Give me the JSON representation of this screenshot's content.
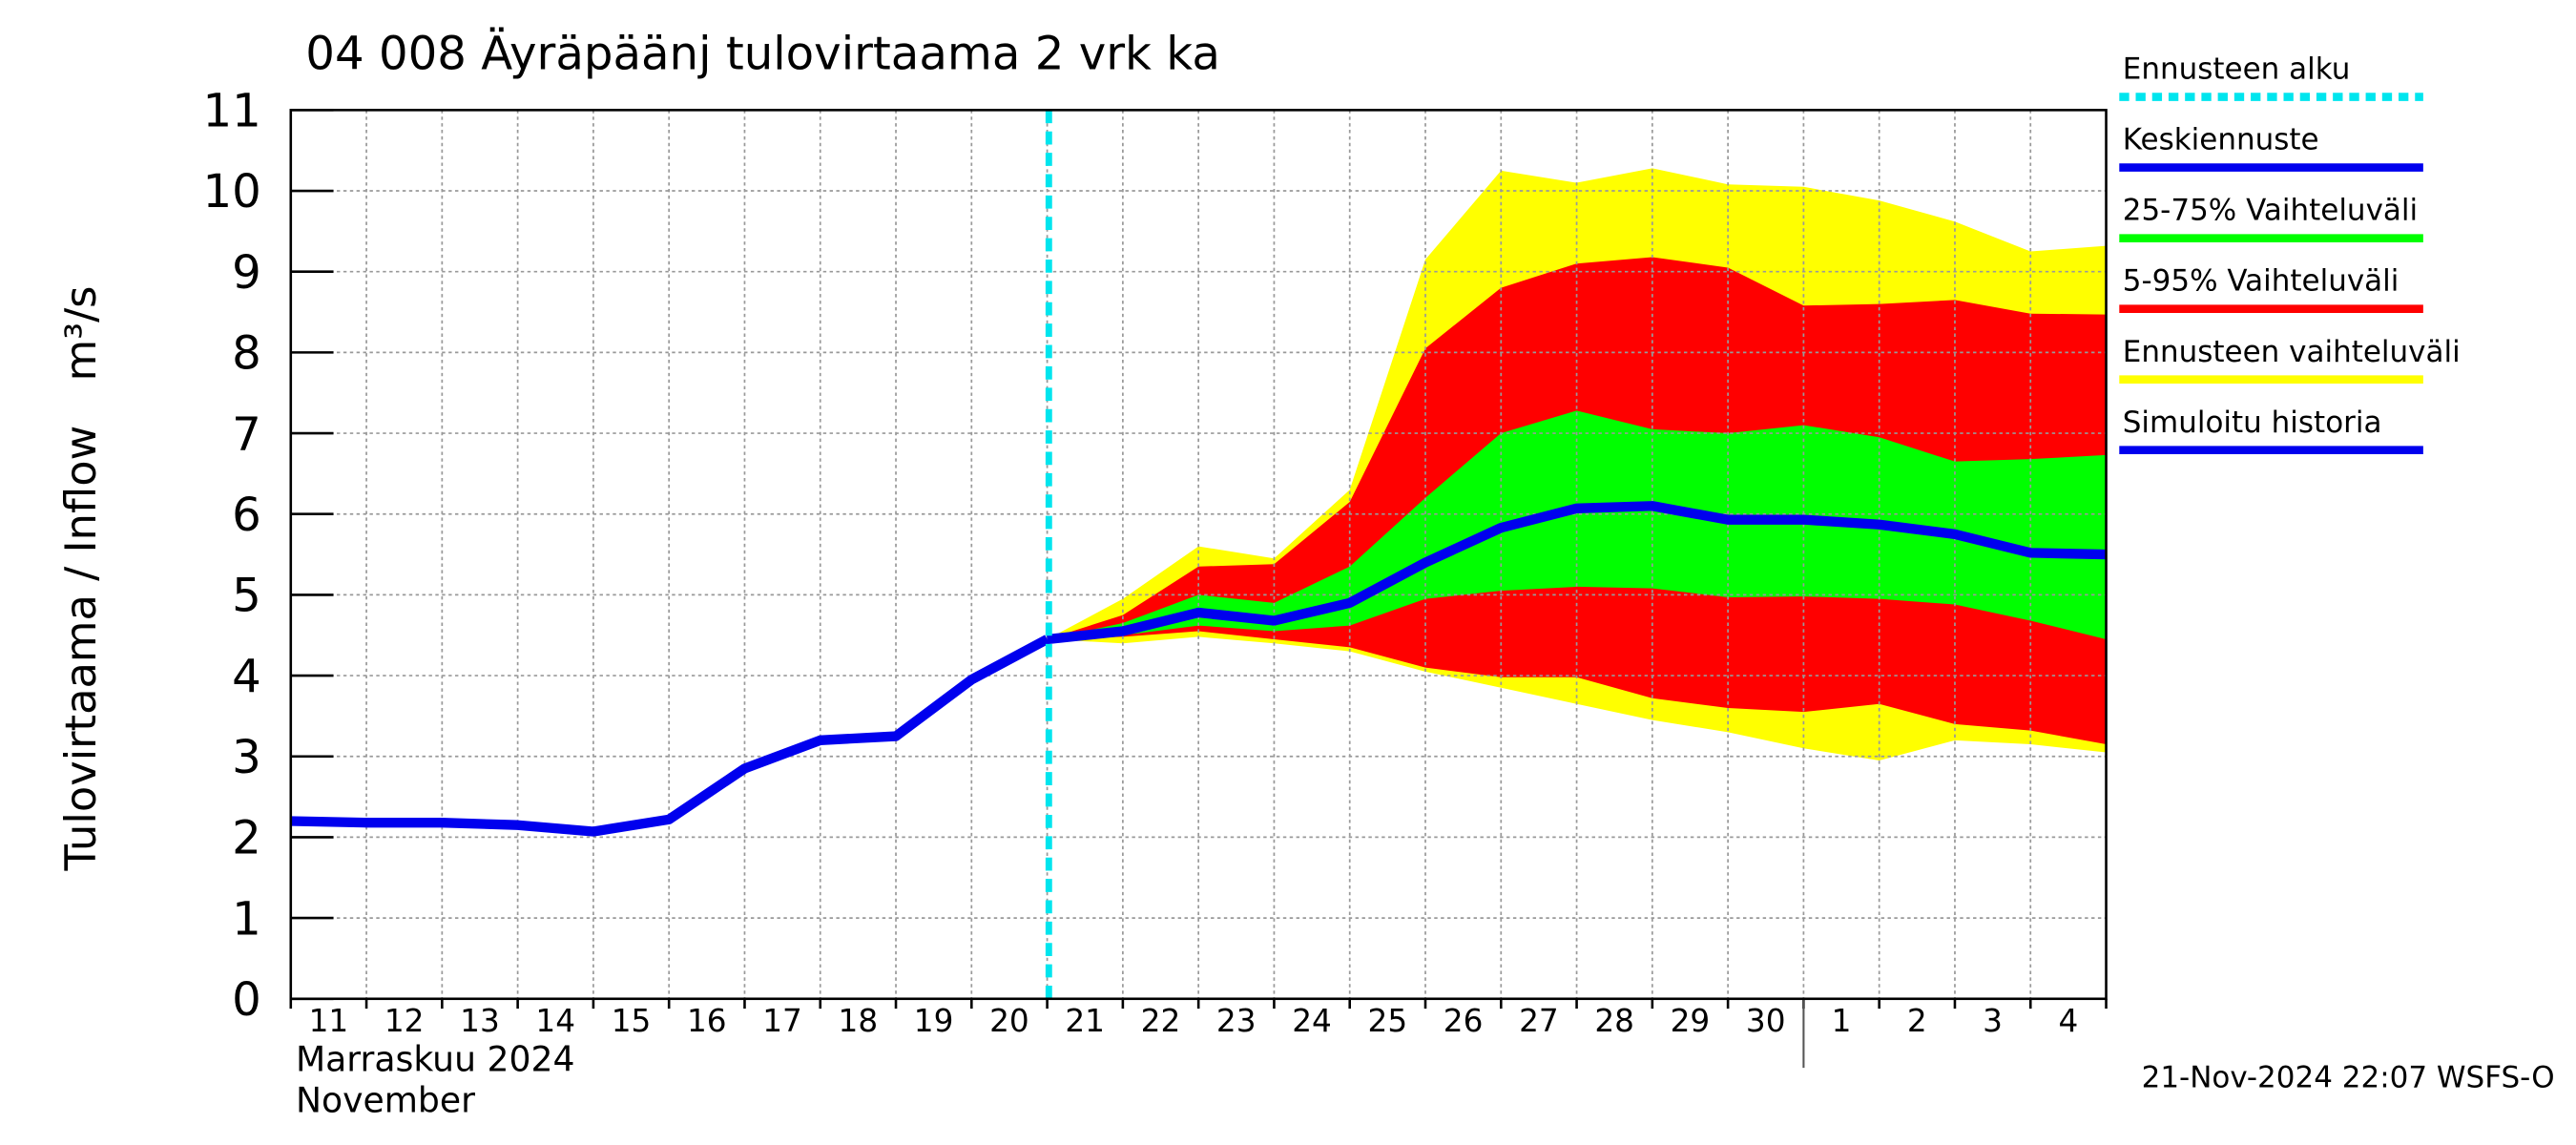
{
  "chart_data": {
    "type": "band-line",
    "title": "04 008 Äyräpäänj tulovirtaama 2 vrk ka",
    "y_label": "Tulovirtaama / Inflow",
    "y_unit": "m³/s",
    "x_label": [
      "Marraskuu 2024",
      "November"
    ],
    "footer": "21-Nov-2024 22:07 WSFS-O",
    "categories": [
      "11",
      "12",
      "13",
      "14",
      "15",
      "16",
      "17",
      "18",
      "19",
      "20",
      "21",
      "22",
      "23",
      "24",
      "25",
      "26",
      "27",
      "28",
      "29",
      "30",
      "1",
      "2",
      "3",
      "4",
      null
    ],
    "ylim": [
      0,
      11
    ],
    "yticks": [
      0,
      1,
      2,
      3,
      4,
      5,
      6,
      7,
      8,
      9,
      10,
      11
    ],
    "grid": true,
    "forecast_start": {
      "name": "Ennusteen alku",
      "color": "#00e5ee",
      "at": "21"
    },
    "series": [
      {
        "name": "Keskiennuste",
        "kind": "line",
        "color": "#0000ee",
        "values": [
          null,
          null,
          null,
          null,
          null,
          null,
          null,
          null,
          null,
          null,
          4.45,
          4.55,
          4.78,
          4.68,
          4.9,
          5.4,
          5.83,
          6.07,
          6.1,
          5.93,
          5.93,
          5.87,
          5.75,
          5.52,
          5.5
        ]
      },
      {
        "name": "25-75% Vaihteluväli",
        "kind": "band",
        "color": "#00ff00",
        "low": [
          null,
          null,
          null,
          null,
          null,
          null,
          null,
          null,
          null,
          null,
          4.45,
          4.5,
          4.62,
          4.55,
          4.62,
          4.95,
          5.05,
          5.1,
          5.08,
          4.97,
          4.98,
          4.95,
          4.88,
          4.68,
          4.45
        ],
        "high": [
          null,
          null,
          null,
          null,
          null,
          null,
          null,
          null,
          null,
          null,
          4.45,
          4.65,
          5.0,
          4.9,
          5.35,
          6.2,
          7.0,
          7.28,
          7.05,
          7.0,
          7.1,
          6.95,
          6.65,
          6.68,
          6.73
        ]
      },
      {
        "name": "5-95% Vaihteluväli",
        "kind": "band",
        "color": "#ff0000",
        "low": [
          null,
          null,
          null,
          null,
          null,
          null,
          null,
          null,
          null,
          null,
          4.45,
          4.48,
          4.55,
          4.45,
          4.35,
          4.1,
          3.98,
          3.98,
          3.72,
          3.6,
          3.55,
          3.65,
          3.4,
          3.32,
          3.15
        ],
        "high": [
          null,
          null,
          null,
          null,
          null,
          null,
          null,
          null,
          null,
          null,
          4.45,
          4.75,
          5.35,
          5.38,
          6.15,
          8.05,
          8.8,
          9.1,
          9.18,
          9.05,
          8.58,
          8.6,
          8.65,
          8.48,
          8.47
        ]
      },
      {
        "name": "Ennusteen vaihteluväli",
        "kind": "band",
        "color": "#ffff00",
        "low": [
          null,
          null,
          null,
          null,
          null,
          null,
          null,
          null,
          null,
          null,
          4.45,
          4.4,
          4.48,
          4.4,
          4.3,
          4.05,
          3.85,
          3.65,
          3.45,
          3.3,
          3.1,
          2.95,
          3.2,
          3.15,
          3.05
        ],
        "high": [
          null,
          null,
          null,
          null,
          null,
          null,
          null,
          null,
          null,
          null,
          4.45,
          4.95,
          5.6,
          5.45,
          6.3,
          9.15,
          10.25,
          10.1,
          10.28,
          10.08,
          10.05,
          9.88,
          9.62,
          9.25,
          9.32
        ]
      },
      {
        "name": "Simuloitu historia",
        "kind": "line",
        "color": "#0000ee",
        "values": [
          2.2,
          2.18,
          2.18,
          2.15,
          2.07,
          2.22,
          2.85,
          3.2,
          3.25,
          3.95,
          4.45,
          null,
          null,
          null,
          null,
          null,
          null,
          null,
          null,
          null,
          null,
          null,
          null,
          null,
          null
        ]
      }
    ]
  }
}
